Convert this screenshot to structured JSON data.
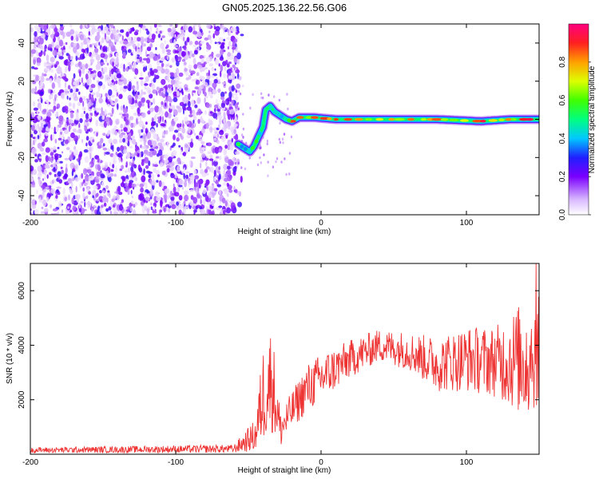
{
  "title": "GN05.2025.136.22.56.G06",
  "colors": {
    "signal_trace": "#ee3333",
    "noise_speckle": "#8a2be2"
  },
  "chart_data": [
    {
      "type": "heatmap",
      "xlabel": "Height of straight line (km)",
      "ylabel": "Frequency (Hz)",
      "xlim": [
        -200,
        150
      ],
      "ylim": [
        -50,
        50
      ],
      "x_ticks": [
        -200,
        -100,
        0,
        100
      ],
      "x_tick_labels": [
        "-200",
        "-100",
        "0",
        "100"
      ],
      "y_ticks": [
        -40,
        -20,
        0,
        20,
        40
      ],
      "y_tick_labels": [
        "-40",
        "-20",
        "0",
        "20",
        "40"
      ],
      "colorbar": {
        "label": "Normalized spectral amplitude",
        "range": [
          0.0,
          1.0
        ],
        "ticks": [
          0.0,
          0.2,
          0.4,
          0.6,
          0.8
        ],
        "tick_labels": [
          "0.0",
          "0.2",
          "0.4",
          "0.6",
          "0.8"
        ]
      },
      "noise_region_x": [
        -200,
        -57
      ],
      "signal_path": [
        {
          "x": -57,
          "y": -13
        },
        {
          "x": -53,
          "y": -15
        },
        {
          "x": -49,
          "y": -17
        },
        {
          "x": -46,
          "y": -14
        },
        {
          "x": -43,
          "y": -9
        },
        {
          "x": -40,
          "y": -4
        },
        {
          "x": -38,
          "y": 5
        },
        {
          "x": -35,
          "y": 7
        },
        {
          "x": -32,
          "y": 4
        },
        {
          "x": -28,
          "y": 2
        },
        {
          "x": -24,
          "y": 0
        },
        {
          "x": -20,
          "y": -1
        },
        {
          "x": -15,
          "y": 1
        },
        {
          "x": -5,
          "y": 1
        },
        {
          "x": 10,
          "y": 0
        },
        {
          "x": 40,
          "y": 0
        },
        {
          "x": 80,
          "y": 0
        },
        {
          "x": 110,
          "y": -1
        },
        {
          "x": 130,
          "y": 0
        },
        {
          "x": 150,
          "y": 0
        }
      ]
    },
    {
      "type": "line",
      "xlabel": "Height of straight line (km)",
      "ylabel": "SNR (10 * v/v)",
      "xlim": [
        -200,
        150
      ],
      "ylim": [
        0,
        7000
      ],
      "x_ticks": [
        -200,
        -100,
        0,
        100
      ],
      "x_tick_labels": [
        "-200",
        "-100",
        "0",
        "100"
      ],
      "y_ticks": [
        2000,
        4000,
        6000
      ],
      "y_tick_labels": [
        "2000",
        "4000",
        "6000"
      ],
      "envelope": [
        {
          "x": -200,
          "mean": 150,
          "spread": 100
        },
        {
          "x": -60,
          "mean": 200,
          "spread": 150
        },
        {
          "x": -45,
          "mean": 700,
          "spread": 600
        },
        {
          "x": -40,
          "mean": 2200,
          "spread": 1800
        },
        {
          "x": -34,
          "mean": 2800,
          "spread": 2000
        },
        {
          "x": -28,
          "mean": 900,
          "spread": 700
        },
        {
          "x": -20,
          "mean": 1600,
          "spread": 700
        },
        {
          "x": -10,
          "mean": 2400,
          "spread": 900
        },
        {
          "x": 0,
          "mean": 2800,
          "spread": 900
        },
        {
          "x": 20,
          "mean": 3500,
          "spread": 700
        },
        {
          "x": 40,
          "mean": 4000,
          "spread": 600
        },
        {
          "x": 60,
          "mean": 3800,
          "spread": 700
        },
        {
          "x": 80,
          "mean": 3300,
          "spread": 1000
        },
        {
          "x": 100,
          "mean": 3500,
          "spread": 1200
        },
        {
          "x": 120,
          "mean": 3400,
          "spread": 1300
        },
        {
          "x": 140,
          "mean": 3500,
          "spread": 2200
        },
        {
          "x": 150,
          "mean": 3800,
          "spread": 2000
        }
      ]
    }
  ]
}
